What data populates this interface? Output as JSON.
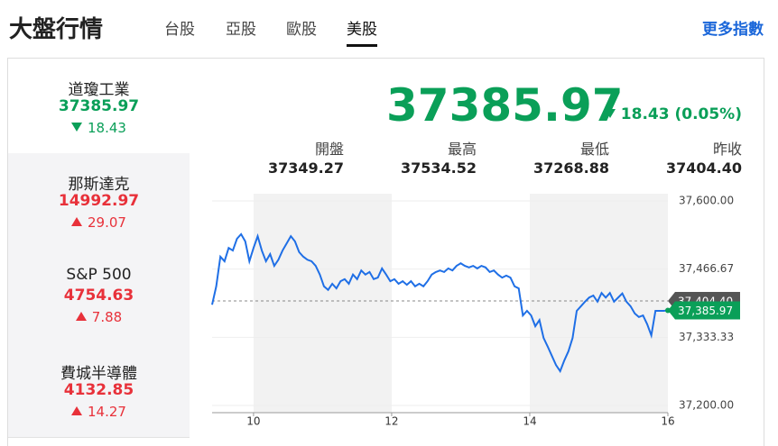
{
  "header": {
    "title": "大盤行情",
    "tabs": [
      "台股",
      "亞股",
      "歐股",
      "美股"
    ],
    "active_tab": 3,
    "more": "更多指數"
  },
  "sidebar": [
    {
      "name": "道瓊工業",
      "value": "37385.97",
      "change": "18.43",
      "direction": "down"
    },
    {
      "name": "那斯達克",
      "value": "14992.97",
      "change": "29.07",
      "direction": "up"
    },
    {
      "name": "S&P 500",
      "value": "4754.63",
      "change": "7.88",
      "direction": "up"
    },
    {
      "name": "費城半導體",
      "value": "4132.85",
      "change": "14.27",
      "direction": "up"
    }
  ],
  "quote": {
    "value": "37385.97",
    "change": "18.43 (0.05%)",
    "direction": "down",
    "stats": [
      {
        "label": "開盤",
        "value": "37349.27"
      },
      {
        "label": "最高",
        "value": "37534.52"
      },
      {
        "label": "最低",
        "value": "37268.88"
      },
      {
        "label": "昨收",
        "value": "37404.40"
      }
    ]
  },
  "chart_data": {
    "type": "line",
    "x": [
      9.4,
      9.46,
      9.52,
      9.58,
      9.64,
      9.7,
      9.76,
      9.82,
      9.88,
      9.94,
      10,
      10.06,
      10.12,
      10.18,
      10.24,
      10.3,
      10.36,
      10.42,
      10.48,
      10.54,
      10.6,
      10.66,
      10.72,
      10.78,
      10.84,
      10.9,
      10.96,
      11.02,
      11.08,
      11.14,
      11.2,
      11.26,
      11.32,
      11.38,
      11.44,
      11.5,
      11.56,
      11.62,
      11.68,
      11.74,
      11.8,
      11.86,
      11.92,
      11.98,
      12.04,
      12.1,
      12.16,
      12.22,
      12.28,
      12.34,
      12.4,
      12.46,
      12.52,
      12.58,
      12.64,
      12.7,
      12.76,
      12.82,
      12.88,
      12.94,
      13,
      13.06,
      13.12,
      13.18,
      13.24,
      13.3,
      13.36,
      13.42,
      13.48,
      13.54,
      13.6,
      13.66,
      13.72,
      13.78,
      13.84,
      13.9,
      13.96,
      14.02,
      14.08,
      14.14,
      14.2,
      14.26,
      14.32,
      14.38,
      14.44,
      14.5,
      14.56,
      14.62,
      14.68,
      14.74,
      14.8,
      14.86,
      14.92,
      14.98,
      15.04,
      15.1,
      15.16,
      15.22,
      15.28,
      15.34,
      15.4,
      15.46,
      15.52,
      15.58,
      15.64,
      15.7,
      15.76,
      15.82,
      15.88,
      15.94,
      16
    ],
    "series": [
      {
        "color": "#1f6fe6",
        "values": [
          37397,
          37433,
          37491,
          37482,
          37508,
          37503,
          37526,
          37535,
          37521,
          37482,
          37508,
          37531,
          37503,
          37482,
          37496,
          37473,
          37485,
          37503,
          37517,
          37531,
          37521,
          37500,
          37491,
          37485,
          37482,
          37473,
          37456,
          37433,
          37426,
          37438,
          37429,
          37443,
          37447,
          37438,
          37456,
          37447,
          37464,
          37456,
          37461,
          37447,
          37450,
          37468,
          37456,
          37443,
          37447,
          37438,
          37443,
          37436,
          37443,
          37433,
          37438,
          37433,
          37443,
          37456,
          37461,
          37464,
          37461,
          37468,
          37464,
          37473,
          37478,
          37473,
          37470,
          37473,
          37468,
          37473,
          37470,
          37461,
          37464,
          37456,
          37450,
          37454,
          37450,
          37433,
          37429,
          37376,
          37385,
          37376,
          37355,
          37367,
          37332,
          37315,
          37297,
          37279,
          37267,
          37288,
          37306,
          37332,
          37385,
          37394,
          37403,
          37411,
          37415,
          37403,
          37420,
          37411,
          37420,
          37403,
          37411,
          37419,
          37403,
          37394,
          37380,
          37373,
          37376,
          37359,
          37337,
          37385,
          37385,
          37385,
          37386
        ]
      }
    ],
    "xlim": [
      9.4,
      16
    ],
    "xticks": [
      10,
      12,
      14,
      16
    ],
    "ylim": [
      37200,
      37600
    ],
    "yticks": [
      {
        "value": 37600,
        "label": "37,600.00"
      },
      {
        "value": 37466.67,
        "label": "37,466.67"
      },
      {
        "value": 37333.33,
        "label": "37,333.33"
      },
      {
        "value": 37200,
        "label": "37,200.00"
      }
    ],
    "ref_line": {
      "value": 37404.4,
      "label": "37,404.40"
    },
    "last_label": {
      "value": 37385.97,
      "label": "37,385.97"
    }
  }
}
